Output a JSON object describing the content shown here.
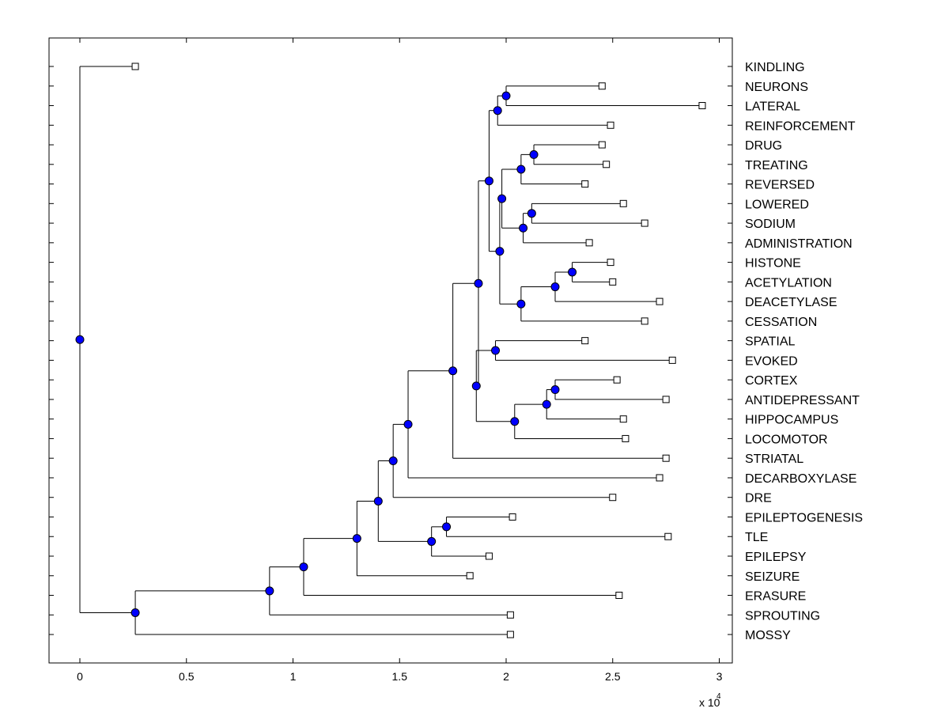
{
  "chart_data": {
    "type": "dendrogram",
    "x_multiplier": "x 10",
    "x_multiplier_exponent": "4",
    "xlim": [
      -0.14,
      3.06
    ],
    "xticks": [
      {
        "value": 0,
        "label": "0"
      },
      {
        "value": 0.5,
        "label": "0.5"
      },
      {
        "value": 1,
        "label": "1"
      },
      {
        "value": 1.5,
        "label": "1.5"
      },
      {
        "value": 2,
        "label": "2"
      },
      {
        "value": 2.5,
        "label": "2.5"
      },
      {
        "value": 3,
        "label": "3"
      }
    ],
    "leaves": [
      {
        "label": "KINDLING",
        "x": 0.26
      },
      {
        "label": "NEURONS",
        "x": 2.45
      },
      {
        "label": "LATERAL",
        "x": 2.92
      },
      {
        "label": "REINFORCEMENT",
        "x": 2.49
      },
      {
        "label": "DRUG",
        "x": 2.45
      },
      {
        "label": "TREATING",
        "x": 2.47
      },
      {
        "label": "REVERSED",
        "x": 2.37
      },
      {
        "label": "LOWERED",
        "x": 2.55
      },
      {
        "label": "SODIUM",
        "x": 2.65
      },
      {
        "label": "ADMINISTRATION",
        "x": 2.39
      },
      {
        "label": "HISTONE",
        "x": 2.49
      },
      {
        "label": "ACETYLATION",
        "x": 2.5
      },
      {
        "label": "DEACETYLASE",
        "x": 2.72
      },
      {
        "label": "CESSATION",
        "x": 2.65
      },
      {
        "label": "SPATIAL",
        "x": 2.37
      },
      {
        "label": "EVOKED",
        "x": 2.78
      },
      {
        "label": "CORTEX",
        "x": 2.52
      },
      {
        "label": "ANTIDEPRESSANT",
        "x": 2.75
      },
      {
        "label": "HIPPOCAMPUS",
        "x": 2.55
      },
      {
        "label": "LOCOMOTOR",
        "x": 2.56
      },
      {
        "label": "STRIATAL",
        "x": 2.75
      },
      {
        "label": "DECARBOXYLASE",
        "x": 2.72
      },
      {
        "label": "DRE",
        "x": 2.5
      },
      {
        "label": "EPILEPTOGENESIS",
        "x": 2.03
      },
      {
        "label": "TLE",
        "x": 2.76
      },
      {
        "label": "EPILEPSY",
        "x": 1.92
      },
      {
        "label": "SEIZURE",
        "x": 1.83
      },
      {
        "label": "ERASURE",
        "x": 2.53
      },
      {
        "label": "SPROUTING",
        "x": 2.02
      },
      {
        "label": "MOSSY",
        "x": 2.02
      }
    ],
    "nodes": [
      {
        "id": "n1",
        "x": 2.0,
        "children": [
          1,
          2
        ]
      },
      {
        "id": "n2",
        "x": 1.96,
        "children": [
          "n1",
          3
        ]
      },
      {
        "id": "n3",
        "x": 2.13,
        "children": [
          4,
          5
        ]
      },
      {
        "id": "n4",
        "x": 2.07,
        "children": [
          "n3",
          6
        ]
      },
      {
        "id": "n5",
        "x": 2.12,
        "children": [
          7,
          8
        ]
      },
      {
        "id": "n6",
        "x": 2.08,
        "children": [
          "n5",
          9
        ]
      },
      {
        "id": "n7",
        "x": 1.98,
        "children": [
          "n4",
          "n6"
        ]
      },
      {
        "id": "n8",
        "x": 2.31,
        "children": [
          10,
          11
        ]
      },
      {
        "id": "n9",
        "x": 2.23,
        "children": [
          "n8",
          12
        ]
      },
      {
        "id": "n10",
        "x": 2.07,
        "children": [
          "n9",
          13
        ]
      },
      {
        "id": "n11",
        "x": 1.97,
        "children": [
          "n7",
          "n10"
        ]
      },
      {
        "id": "n12",
        "x": 1.92,
        "children": [
          "n2",
          "n11"
        ]
      },
      {
        "id": "n13",
        "x": 1.95,
        "children": [
          14,
          15
        ]
      },
      {
        "id": "n14",
        "x": 2.23,
        "children": [
          16,
          17
        ]
      },
      {
        "id": "n15",
        "x": 2.19,
        "children": [
          "n14",
          18
        ]
      },
      {
        "id": "n16",
        "x": 2.04,
        "children": [
          "n15",
          19
        ]
      },
      {
        "id": "n17",
        "x": 1.86,
        "children": [
          "n13",
          "n16"
        ]
      },
      {
        "id": "n18",
        "x": 1.87,
        "children": [
          "n12",
          "n17"
        ]
      },
      {
        "id": "n19",
        "x": 1.75,
        "children": [
          "n18",
          20
        ]
      },
      {
        "id": "n20",
        "x": 1.54,
        "children": [
          "n19",
          21
        ]
      },
      {
        "id": "n21",
        "x": 1.47,
        "children": [
          "n20",
          22
        ]
      },
      {
        "id": "n22",
        "x": 1.72,
        "children": [
          23,
          24
        ]
      },
      {
        "id": "n23",
        "x": 1.65,
        "children": [
          "n22",
          25
        ]
      },
      {
        "id": "n24",
        "x": 1.4,
        "children": [
          "n21",
          "n23"
        ]
      },
      {
        "id": "n25",
        "x": 1.3,
        "children": [
          "n24",
          26
        ]
      },
      {
        "id": "n26",
        "x": 1.05,
        "children": [
          "n25",
          27
        ]
      },
      {
        "id": "n27",
        "x": 0.89,
        "children": [
          "n26",
          28
        ]
      },
      {
        "id": "n28",
        "x": 0.26,
        "children": [
          "n27",
          29
        ]
      },
      {
        "id": "n29",
        "x": 0.0,
        "children": [
          0,
          "n28"
        ]
      }
    ],
    "colors": {
      "node": "#0000ff",
      "line": "#000000",
      "leaf_marker": "#ffffff"
    }
  }
}
